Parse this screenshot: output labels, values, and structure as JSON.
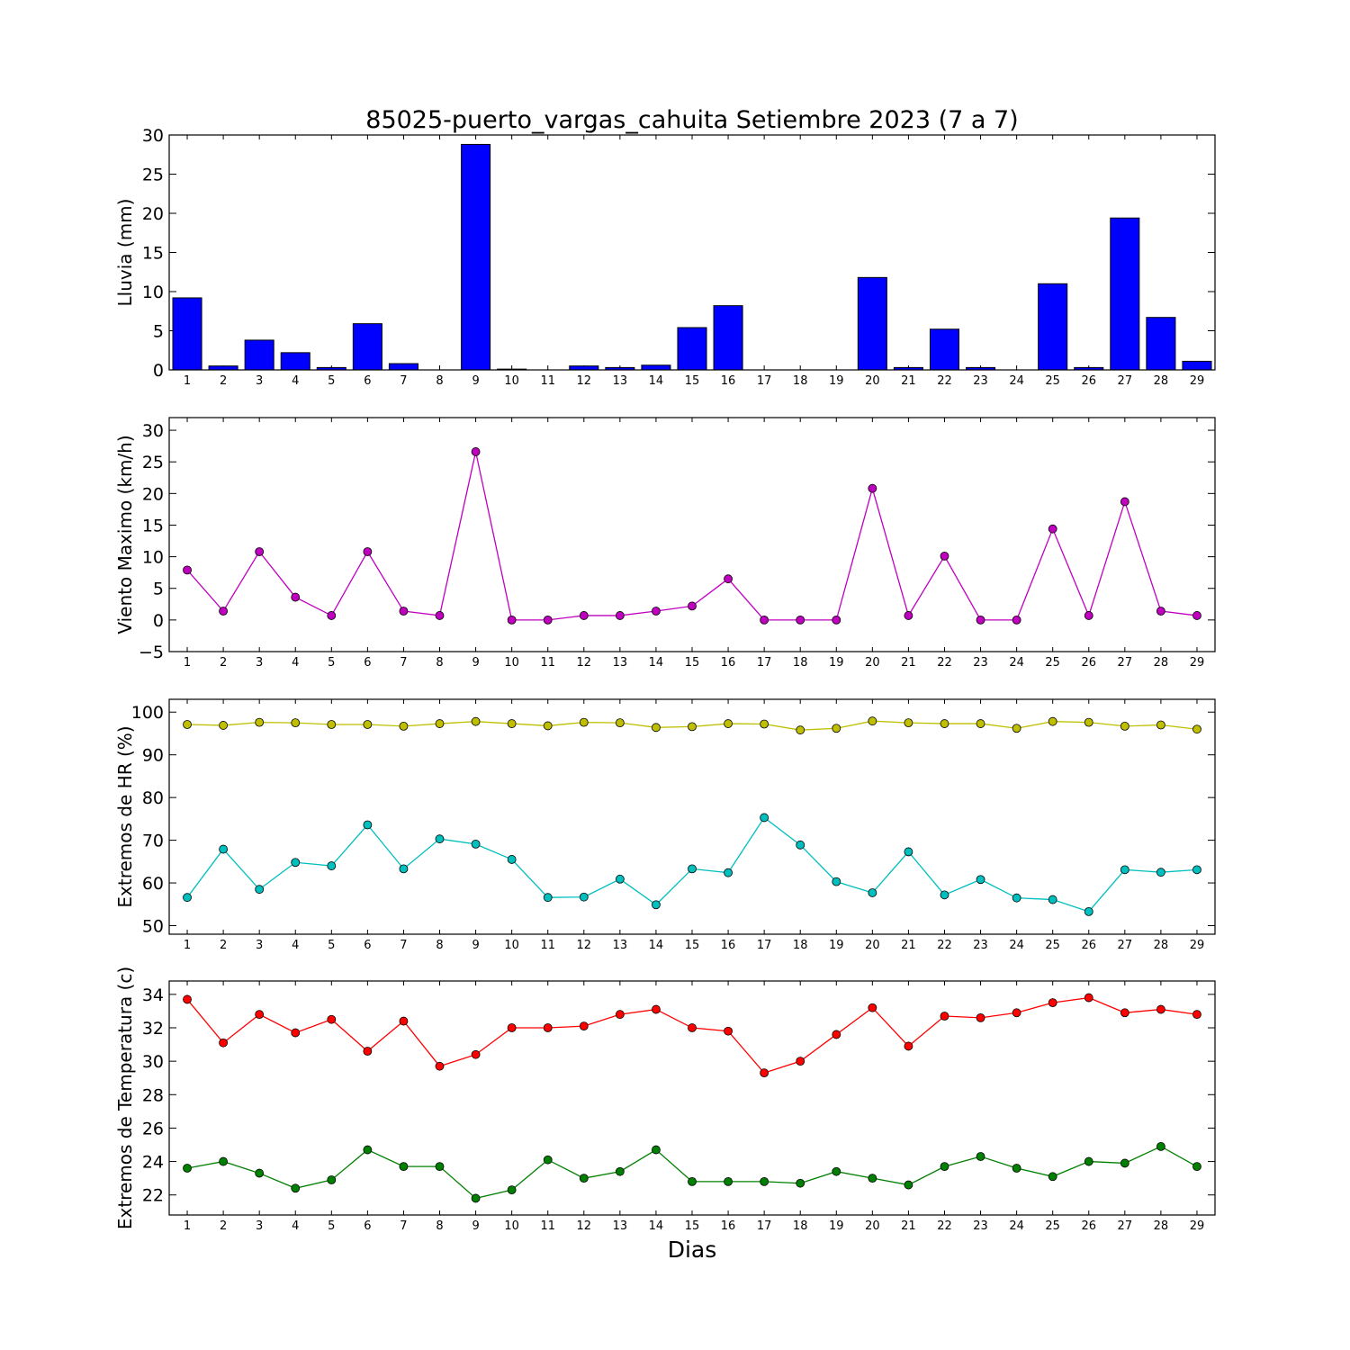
{
  "title": "85025-puerto_vargas_cahuita Setiembre 2023  (7 a 7)",
  "xlabel": "Dias",
  "chart_data": [
    {
      "type": "bar",
      "ylabel": "Lluvia (mm)",
      "x": [
        1,
        2,
        3,
        4,
        5,
        6,
        7,
        8,
        9,
        10,
        11,
        12,
        13,
        14,
        15,
        16,
        17,
        18,
        19,
        20,
        21,
        22,
        23,
        24,
        25,
        26,
        27,
        28,
        29
      ],
      "ylim": [
        0,
        30
      ],
      "yticks": [
        0,
        5,
        10,
        15,
        20,
        25,
        30
      ],
      "series": [
        {
          "color": "#0000ff",
          "values": [
            9.2,
            0.5,
            3.8,
            2.2,
            0.3,
            5.9,
            0.8,
            0,
            28.8,
            0.1,
            0,
            0.5,
            0.3,
            0.6,
            5.4,
            8.2,
            0,
            0,
            0,
            11.8,
            0.3,
            5.2,
            0.3,
            0,
            11.0,
            0.3,
            19.4,
            6.7,
            1.1
          ]
        }
      ]
    },
    {
      "type": "line",
      "ylabel": "Viento Maximo (km/h)",
      "x": [
        1,
        2,
        3,
        4,
        5,
        6,
        7,
        8,
        9,
        10,
        11,
        12,
        13,
        14,
        15,
        16,
        17,
        18,
        19,
        20,
        21,
        22,
        23,
        24,
        25,
        26,
        27,
        28,
        29
      ],
      "ylim": [
        -5,
        32
      ],
      "yticks": [
        -5,
        0,
        5,
        10,
        15,
        20,
        25,
        30
      ],
      "series": [
        {
          "color": "#bf00bf",
          "values": [
            7.9,
            1.4,
            10.8,
            3.6,
            0.7,
            10.8,
            1.4,
            0.7,
            26.6,
            0,
            0,
            0.7,
            0.7,
            1.4,
            2.2,
            6.5,
            0,
            0,
            0,
            20.8,
            0.7,
            10.1,
            0,
            0,
            14.4,
            0.7,
            18.7,
            1.4,
            0.7
          ]
        }
      ]
    },
    {
      "type": "line",
      "ylabel": "Extremos de HR (%)",
      "x": [
        1,
        2,
        3,
        4,
        5,
        6,
        7,
        8,
        9,
        10,
        11,
        12,
        13,
        14,
        15,
        16,
        17,
        18,
        19,
        20,
        21,
        22,
        23,
        24,
        25,
        26,
        27,
        28,
        29
      ],
      "ylim": [
        48,
        103
      ],
      "yticks": [
        50,
        60,
        70,
        80,
        90,
        100
      ],
      "series": [
        {
          "color": "#bfbf00",
          "values": [
            97.1,
            96.9,
            97.6,
            97.5,
            97.1,
            97.1,
            96.7,
            97.3,
            97.8,
            97.3,
            96.8,
            97.6,
            97.5,
            96.4,
            96.6,
            97.3,
            97.2,
            95.8,
            96.2,
            97.9,
            97.5,
            97.3,
            97.3,
            96.2,
            97.8,
            97.6,
            96.7,
            97.0,
            96.0
          ]
        },
        {
          "color": "#00bfbf",
          "values": [
            56.6,
            67.9,
            58.5,
            64.8,
            64.0,
            73.6,
            63.3,
            70.3,
            69.1,
            65.5,
            56.6,
            56.7,
            60.9,
            54.9,
            63.3,
            62.4,
            75.3,
            68.9,
            60.3,
            57.7,
            67.3,
            57.2,
            60.8,
            56.5,
            56.1,
            53.3,
            63.1,
            62.5,
            63.1
          ]
        }
      ]
    },
    {
      "type": "line",
      "ylabel": "Extremos de Temperatura (c)",
      "x": [
        1,
        2,
        3,
        4,
        5,
        6,
        7,
        8,
        9,
        10,
        11,
        12,
        13,
        14,
        15,
        16,
        17,
        18,
        19,
        20,
        21,
        22,
        23,
        24,
        25,
        26,
        27,
        28,
        29
      ],
      "ylim": [
        20.8,
        34.8
      ],
      "yticks": [
        22,
        24,
        26,
        28,
        30,
        32,
        34
      ],
      "series": [
        {
          "color": "#ff0000",
          "values": [
            33.7,
            31.1,
            32.8,
            31.7,
            32.5,
            30.6,
            32.4,
            29.7,
            30.4,
            32.0,
            32.0,
            32.1,
            32.8,
            33.1,
            32.0,
            31.8,
            29.3,
            30.0,
            31.6,
            33.2,
            30.9,
            32.7,
            32.6,
            32.9,
            33.5,
            33.8,
            32.9,
            33.1,
            32.8
          ]
        },
        {
          "color": "#008000",
          "values": [
            23.6,
            24.0,
            23.3,
            22.4,
            22.9,
            24.7,
            23.7,
            23.7,
            21.8,
            22.3,
            24.1,
            23.0,
            23.4,
            24.7,
            22.8,
            22.8,
            22.8,
            22.7,
            23.4,
            23.0,
            22.6,
            23.7,
            24.3,
            23.6,
            23.1,
            24.0,
            23.9,
            24.9,
            23.7
          ]
        }
      ]
    }
  ]
}
